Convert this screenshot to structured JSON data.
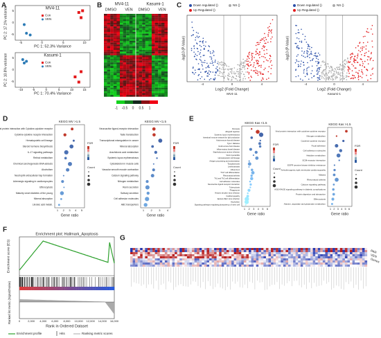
{
  "panels": {
    "A": {
      "label": "A",
      "plots": [
        {
          "title": "MV4-11",
          "legend": [
            "Con",
            "VEN"
          ],
          "ylabel": "PC 2: 17.1% variance",
          "xlabel": "PC 1: 52.3% Variance",
          "xticks": [
            "-5",
            "0",
            "5",
            "10"
          ],
          "yticks": [
            "5",
            "0",
            "-5"
          ]
        },
        {
          "title": "Kasumi-1",
          "legend": [
            "Con",
            "VEN"
          ],
          "ylabel": "PC 2: 10.8% variance",
          "xlabel": "PC 1: 70.4% Variance",
          "xticks": [
            "-10",
            "-5",
            "0",
            "5",
            "10",
            "15"
          ],
          "yticks": [
            "5",
            "0",
            "-5"
          ]
        }
      ]
    },
    "B": {
      "label": "B",
      "headers": [
        "MV4-11",
        "Kasumi-1"
      ],
      "groups": [
        "DMSO",
        "VEN",
        "DMSO",
        "VEN"
      ],
      "colorbar": [
        "-1",
        "-0.5",
        "0",
        "0.5",
        "1"
      ]
    },
    "C": {
      "label": "C",
      "plots": [
        {
          "legend": [
            "Down regulated ()",
            "Up Regulated ()",
            "NS ()"
          ],
          "ylabel": "-log10 (P-Value)",
          "xlabel": "Log2 (Fold Change)",
          "subtitle": "MV4-11",
          "xticks": [
            "-4",
            "0",
            "4"
          ]
        },
        {
          "legend": [
            "Down regulated ()",
            "Up Regulated ()",
            "NS ()"
          ],
          "ylabel": "-log10 (P-Value)",
          "xlabel": "Log2 (Fold Change)",
          "subtitle": "Kasumi-1",
          "xticks": [
            "-4",
            "0",
            "4"
          ]
        }
      ]
    },
    "D": {
      "label": "D",
      "plots": [
        {
          "title": "KEGG MV >1.5",
          "xlabel": "Gene ratio",
          "xticks": [
            "1",
            "2",
            "3",
            "4",
            "5"
          ],
          "legend": [
            "FDR",
            "Count"
          ],
          "terms": [
            "Viral protein interaction with Cytokine-cytokine receptor",
            "Cytokine-cytokine receptor interaction",
            "Hematopoietic cell lineage",
            "Steroid hormone biosynthesis",
            "IL-17 signaling pathways",
            "Retinol metabolism",
            "Chemical carcinogenesis-DNA adducts",
            "Alcoholism",
            "Neutrophil extracellular trap formation",
            "Adrenergic signaling in cardiomyocytes",
            "Efferocytosis",
            "Maturity onset diabetes of the young",
            "Mineral absorption",
            "Linoleic acid metab."
          ]
        },
        {
          "title": "KEGG MV <1.5",
          "xlabel": "Gene ratio",
          "xticks": [
            "1",
            "2",
            "3",
            "4"
          ],
          "legend": [
            "FDR",
            "Count"
          ],
          "terms": [
            "Neuroactive ligand-receptor interaction",
            "Taste transduction",
            "Transcriptional misregulation in cancer",
            "Mineral absorption",
            "Arachidonic acid metabolism",
            "Systemic lupus erythematosus",
            "Cytoskeleton in muscle cells",
            "Vascular smooth muscle contraction",
            "Calcium signaling pathway",
            "Nitrogen metabolism",
            "Renin secretion",
            "Salivary secretion",
            "Cell adhesion molecules",
            "ABC transporters"
          ]
        }
      ]
    },
    "E": {
      "label": "E",
      "plots": [
        {
          "title": "KEGG Kas <1.5",
          "xlabel": "Gene ratio",
          "xticks": [
            "1",
            "2",
            "3",
            "4",
            "5",
            "6"
          ],
          "legend": [
            "FDR",
            "Count"
          ],
          "terms": [
            "Pertussis",
            "Allograft rejection",
            "Systemic lupus erythematosus",
            "Intestinal immune network for IgA production",
            "Autoimmune thyroid disease",
            "Type I diabetes",
            "Graft-versus-host disease",
            "Inflammatory bowel disease",
            "Staphylococcus aureus infection",
            "Viral myocarditis",
            "Hematopoietic cell lineage",
            "Antigen processing and presentation",
            "Toxoplasmosis",
            "Leishmaniasis",
            "Influenza A",
            "Th17 cell differentiation",
            "Rheumatoid arthritis",
            "Th1 and Th2 cell differentiation",
            "Cell adhesion molecules",
            "Neuroactive ligand-receptor interaction",
            "Tuberculosis",
            "Phagosome",
            "Herpes simplex virus infection",
            "Cardiomyopathy",
            "Epstein-Barr virus infection",
            "Alcoholism",
            "Signaling pathways regulating pluripotency of stem cell"
          ]
        },
        {
          "title": "KEGG Kas >1.5",
          "xlabel": "Gene ratio",
          "xticks": [
            "1",
            "2",
            "3",
            "4",
            "5",
            "6"
          ],
          "legend": [
            "FDR",
            "Count"
          ],
          "terms": [
            "Viral protein interaction with cytokine-cytokine receptor",
            "Nitrogen metabolism",
            "Cytokine-cytokine receptor",
            "Focal adhesion",
            "Cell adhesion molecules",
            "Histidine metabolism",
            "ECM-receptor interaction",
            "EGFR tyrosine kinase inhibitor resistance",
            "Arrhythmogenic right ventricular cardiomyopathy",
            "Malaria",
            "Rheumatoid arthritis",
            "Calcium signaling pathway",
            "AGE-RAGE signaling pathway in diabetic complications",
            "Protein digestion and absorption",
            "Efferocytosis",
            "Alanine, aspartate and glutamate metabolism"
          ]
        }
      ]
    },
    "F": {
      "label": "F",
      "title": "Enrichment plot: Hallmark_Apoptosis",
      "ylabel_top": "Enrichment score (ES)",
      "ylabel_bottom": "Ranked list metric (Signal2Noise)",
      "xlabel": "Rank in Ordered Dataset",
      "xticks": [
        "0",
        "2,000",
        "4,000",
        "6,000",
        "8,000",
        "10,000",
        "12,000",
        "14,000",
        "16,000"
      ],
      "legend": [
        "Enrichment profile",
        "Hits",
        "Ranking metric scores"
      ]
    },
    "G": {
      "label": "G",
      "rows": [
        "PAR",
        "VEN",
        "Genes"
      ]
    }
  }
}
